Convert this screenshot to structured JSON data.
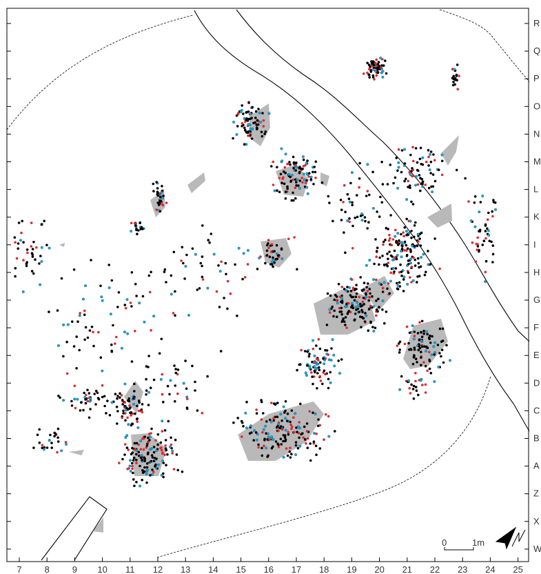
{
  "x_axis_labels": [
    "7",
    "8",
    "9",
    "10",
    "11",
    "12",
    "13",
    "14",
    "15",
    "16",
    "17",
    "18",
    "19",
    "20",
    "21",
    "22",
    "23",
    "24",
    "25"
  ],
  "y_axis_labels": [
    "R",
    "Q",
    "P",
    "O",
    "N",
    "M",
    "L",
    "K",
    "I",
    "H",
    "G",
    "F",
    "E",
    "D",
    "C",
    "B",
    "A",
    "Z",
    "X",
    "W"
  ],
  "scale_bar": {
    "zero_label": "0",
    "length_label": "1m"
  },
  "north_arrow": {
    "label": "N"
  },
  "legend_colors": {
    "black_points": "#000000",
    "red_points": "#e0282e",
    "blue_points": "#1aa6dd",
    "gray_features": "#b9b9b9"
  },
  "icons": {
    "north_arrow": "north-arrow-icon"
  }
}
